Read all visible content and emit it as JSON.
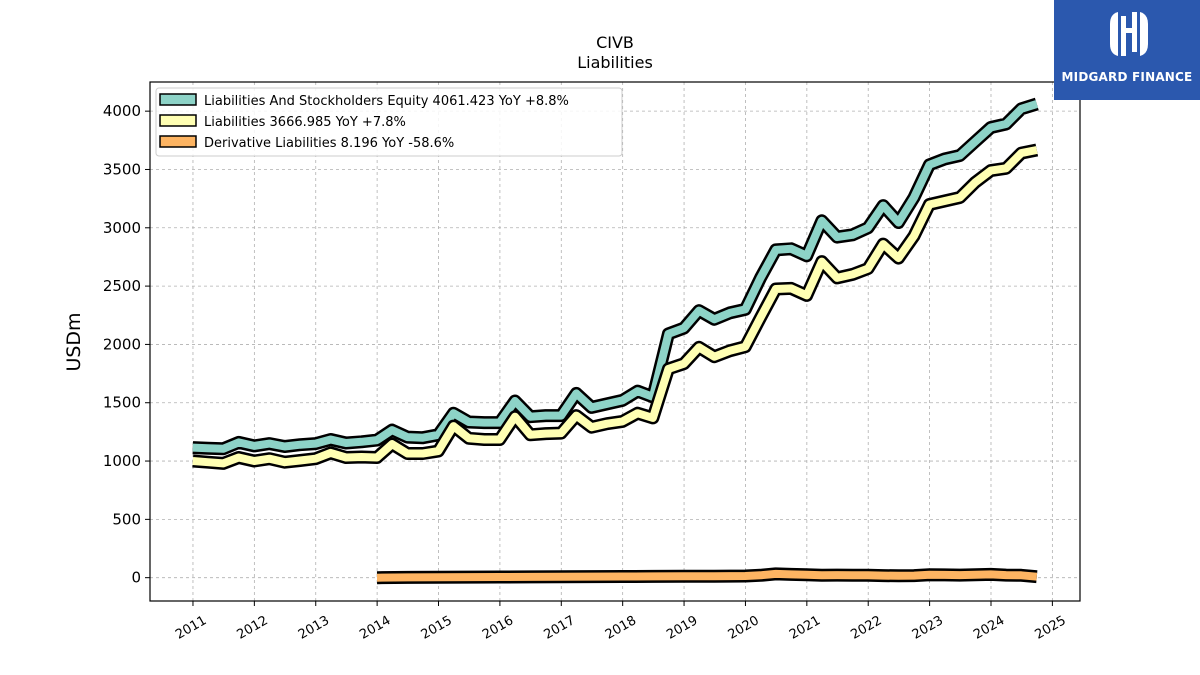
{
  "logo": {
    "text": "MIDGARD FINANCE",
    "bg_color": "#2b58ae"
  },
  "chart_data": {
    "type": "line",
    "title": "CIVB",
    "subtitle": "Liabilities",
    "ylabel": "USDm",
    "xlabel": "",
    "ylim": [
      -200,
      4250
    ],
    "xlim": [
      2010.3,
      2025.45
    ],
    "y_ticks": [
      0,
      500,
      1000,
      1500,
      2000,
      2500,
      3000,
      3500,
      4000
    ],
    "x_ticks": [
      "2011",
      "2012",
      "2013",
      "2014",
      "2015",
      "2016",
      "2017",
      "2018",
      "2019",
      "2020",
      "2021",
      "2022",
      "2023",
      "2024",
      "2025"
    ],
    "grid": true,
    "legend_position": "top-left",
    "series": [
      {
        "name": "Liabilities And Stockholders Equity",
        "legend": "Liabilities And Stockholders Equity  4061.423 YoY +8.8%",
        "color": "#8dd3c7",
        "x": [
          "2010-12-31",
          "2011-03-31",
          "2011-06-30",
          "2011-09-30",
          "2011-12-31",
          "2012-03-31",
          "2012-06-30",
          "2012-09-30",
          "2012-12-31",
          "2013-03-31",
          "2013-06-30",
          "2013-09-30",
          "2013-12-31",
          "2014-03-31",
          "2014-06-30",
          "2014-09-30",
          "2014-12-31",
          "2015-03-31",
          "2015-06-30",
          "2015-09-30",
          "2015-12-31",
          "2016-03-31",
          "2016-06-30",
          "2016-09-30",
          "2016-12-31",
          "2017-03-31",
          "2017-06-30",
          "2017-09-30",
          "2017-12-31",
          "2018-03-31",
          "2018-06-30",
          "2018-09-30",
          "2018-12-31",
          "2019-03-31",
          "2019-06-30",
          "2019-09-30",
          "2019-12-31",
          "2020-03-31",
          "2020-06-30",
          "2020-09-30",
          "2020-12-31",
          "2021-03-31",
          "2021-06-30",
          "2021-09-30",
          "2021-12-31",
          "2022-03-31",
          "2022-06-30",
          "2022-09-30",
          "2022-12-31",
          "2023-03-31",
          "2023-06-30",
          "2023-09-30",
          "2023-12-31",
          "2024-03-31",
          "2024-06-30",
          "2024-09-30"
        ],
        "values": [
          1115,
          1110,
          1105,
          1160,
          1130,
          1150,
          1125,
          1140,
          1150,
          1185,
          1155,
          1165,
          1180,
          1265,
          1205,
          1200,
          1225,
          1410,
          1335,
          1330,
          1330,
          1515,
          1380,
          1390,
          1390,
          1580,
          1460,
          1490,
          1520,
          1600,
          1550,
          2090,
          2140,
          2290,
          2215,
          2270,
          2300,
          2570,
          2810,
          2820,
          2760,
          3060,
          2920,
          2940,
          3000,
          3190,
          3045,
          3260,
          3540,
          3590,
          3620,
          3740,
          3860,
          3890,
          4020,
          4061
        ]
      },
      {
        "name": "Liabilities",
        "legend": "Liabilities  3666.985 YoY +7.8%",
        "color": "#ffffb3",
        "x": [
          "2010-12-31",
          "2011-03-31",
          "2011-06-30",
          "2011-09-30",
          "2011-12-31",
          "2012-03-31",
          "2012-06-30",
          "2012-09-30",
          "2012-12-31",
          "2013-03-31",
          "2013-06-30",
          "2013-09-30",
          "2013-12-31",
          "2014-03-31",
          "2014-06-30",
          "2014-09-30",
          "2014-12-31",
          "2015-03-31",
          "2015-06-30",
          "2015-09-30",
          "2015-12-31",
          "2016-03-31",
          "2016-06-30",
          "2016-09-30",
          "2016-12-31",
          "2017-03-31",
          "2017-06-30",
          "2017-09-30",
          "2017-12-31",
          "2018-03-31",
          "2018-06-30",
          "2018-09-30",
          "2018-12-31",
          "2019-03-31",
          "2019-06-30",
          "2019-09-30",
          "2019-12-31",
          "2020-03-31",
          "2020-06-30",
          "2020-09-30",
          "2020-12-31",
          "2021-03-31",
          "2021-06-30",
          "2021-09-30",
          "2021-12-31",
          "2022-03-31",
          "2022-06-30",
          "2022-09-30",
          "2022-12-31",
          "2023-03-31",
          "2023-06-30",
          "2023-09-30",
          "2023-12-31",
          "2024-03-31",
          "2024-06-30",
          "2024-09-30"
        ],
        "values": [
          1000,
          990,
          980,
          1030,
          1000,
          1020,
          990,
          1005,
          1020,
          1070,
          1030,
          1035,
          1030,
          1145,
          1065,
          1065,
          1085,
          1300,
          1195,
          1185,
          1185,
          1380,
          1225,
          1235,
          1240,
          1390,
          1290,
          1320,
          1340,
          1410,
          1370,
          1790,
          1835,
          1975,
          1895,
          1945,
          1980,
          2230,
          2475,
          2480,
          2420,
          2710,
          2570,
          2600,
          2650,
          2860,
          2740,
          2930,
          3200,
          3230,
          3260,
          3390,
          3490,
          3510,
          3640,
          3667
        ]
      },
      {
        "name": "Derivative Liabilities",
        "legend": "Derivative Liabilities  8.196 YoY -58.6%",
        "color": "#fdb462",
        "x": [
          "2013-12-31",
          "2014-06-30",
          "2014-12-31",
          "2015-06-30",
          "2015-12-31",
          "2016-06-30",
          "2016-12-31",
          "2017-06-30",
          "2017-12-31",
          "2018-06-30",
          "2018-12-31",
          "2019-06-30",
          "2019-12-31",
          "2020-03-31",
          "2020-06-30",
          "2020-09-30",
          "2020-12-31",
          "2021-03-31",
          "2021-06-30",
          "2021-09-30",
          "2021-12-31",
          "2022-03-31",
          "2022-06-30",
          "2022-09-30",
          "2022-12-31",
          "2023-03-31",
          "2023-06-30",
          "2023-09-30",
          "2023-12-31",
          "2024-03-31",
          "2024-06-30",
          "2024-09-30"
        ],
        "values": [
          0,
          2,
          4,
          5,
          6,
          7,
          8,
          9,
          10,
          11,
          12,
          13,
          14,
          20,
          32,
          28,
          25,
          20,
          22,
          21,
          20,
          18,
          16,
          18,
          25,
          24,
          22,
          25,
          28,
          22,
          20,
          8
        ]
      }
    ]
  }
}
